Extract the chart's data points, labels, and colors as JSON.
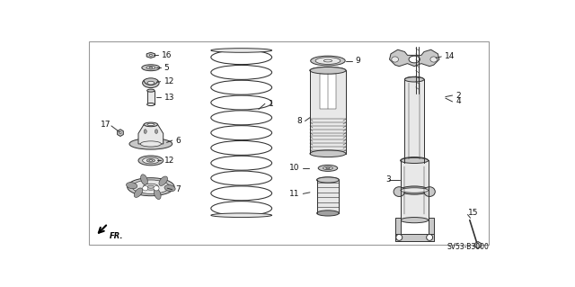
{
  "background_color": "#ffffff",
  "border_color": "#999999",
  "text_color": "#111111",
  "line_color": "#333333",
  "fill_light": "#e8e8e8",
  "fill_mid": "#c8c8c8",
  "fill_dark": "#a0a0a0",
  "diagram_code": "SV53-B3000",
  "fig_width": 6.4,
  "fig_height": 3.19,
  "dpi": 100
}
